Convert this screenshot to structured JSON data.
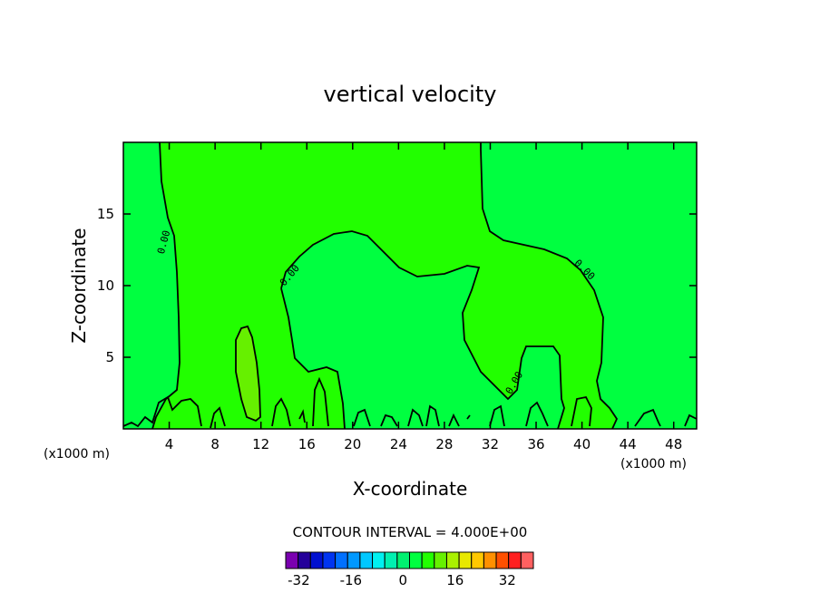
{
  "chart_data": {
    "type": "contour",
    "title": "vertical velocity",
    "xlabel": "X-coordinate",
    "ylabel": "Z-coordinate",
    "x_unit_note": "(x1000 m)",
    "y_unit_note": "(x1000 m)",
    "xlim": [
      0,
      50
    ],
    "ylim": [
      0,
      20
    ],
    "x_ticks": [
      4,
      8,
      12,
      16,
      20,
      24,
      28,
      32,
      36,
      40,
      44,
      48
    ],
    "y_ticks": [
      5,
      10,
      15
    ],
    "contour_interval_text": "CONTOUR INTERVAL = 4.000E+00",
    "contour_label": "0.00",
    "colorbar": {
      "tick_labels": [
        "-32",
        "-16",
        "0",
        "16",
        "32"
      ],
      "tick_values": [
        -32,
        -16,
        0,
        16,
        32
      ],
      "min": -36,
      "max": 40,
      "step": 4,
      "colors": [
        "#7a00b0",
        "#24009a",
        "#0010d0",
        "#0034f0",
        "#0070ff",
        "#0098ff",
        "#00c8ff",
        "#00f0f0",
        "#00f0b0",
        "#00f070",
        "#00ff40",
        "#22ff00",
        "#66f000",
        "#aaf000",
        "#e8e800",
        "#ffc800",
        "#ff9000",
        "#ff5000",
        "#ff2020",
        "#ff6060"
      ]
    },
    "regions": {
      "background_color": "#00ff40",
      "zero_to_four_color": "#22ff00",
      "four_to_eight_color": "#66f000"
    }
  }
}
